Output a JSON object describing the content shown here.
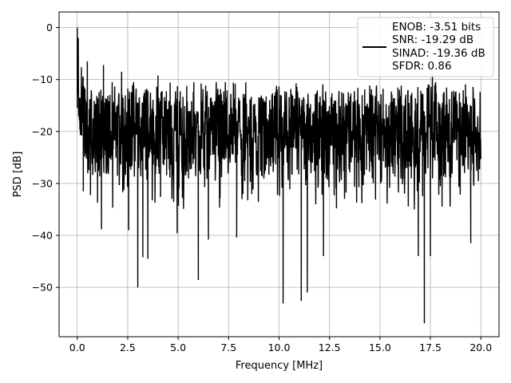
{
  "chart_data": {
    "type": "line",
    "title": "",
    "xlabel": "Frequency [MHz]",
    "ylabel": "PSD [dB]",
    "xlim": [
      -0.9,
      20.9
    ],
    "ylim": [
      -59.5,
      3.0
    ],
    "xticks": [
      0.0,
      2.5,
      5.0,
      7.5,
      10.0,
      12.5,
      15.0,
      17.5,
      20.0
    ],
    "xtick_labels": [
      "0.0",
      "2.5",
      "5.0",
      "7.5",
      "10.0",
      "12.5",
      "15.0",
      "17.5",
      "20.0"
    ],
    "yticks": [
      0,
      -10,
      -20,
      -30,
      -40,
      -50
    ],
    "ytick_labels": [
      "0",
      "−10",
      "−20",
      "−30",
      "−40",
      "−50"
    ],
    "grid": true,
    "legend_position": "top-right",
    "legend_lines": [
      "ENOB: -3.51 bits",
      "SNR: -19.29 dB",
      "SINAD: -19.36 dB",
      "SFDR: 0.86"
    ],
    "line_color": "#000000",
    "series_description": "dense noisy PSD; baseline around -20 dB fluctuating between roughly -10 and -35 dB",
    "peaks": [
      {
        "x": 0.0,
        "y": 0.0
      },
      {
        "x": 0.05,
        "y": -2.0
      },
      {
        "x": 0.5,
        "y": -6.5
      },
      {
        "x": 1.3,
        "y": -7.2
      },
      {
        "x": 2.2,
        "y": -8.5
      },
      {
        "x": 4.0,
        "y": -9.2
      },
      {
        "x": 17.6,
        "y": -9.0
      }
    ],
    "dips": [
      {
        "x": 0.3,
        "y": -31.5
      },
      {
        "x": 1.2,
        "y": -38.8
      },
      {
        "x": 2.55,
        "y": -39.0
      },
      {
        "x": 3.0,
        "y": -50.0
      },
      {
        "x": 3.25,
        "y": -44.2
      },
      {
        "x": 3.5,
        "y": -44.5
      },
      {
        "x": 4.95,
        "y": -39.6
      },
      {
        "x": 6.0,
        "y": -48.6
      },
      {
        "x": 6.5,
        "y": -40.8
      },
      {
        "x": 7.9,
        "y": -40.4
      },
      {
        "x": 10.2,
        "y": -53.1
      },
      {
        "x": 11.1,
        "y": -52.6
      },
      {
        "x": 11.4,
        "y": -51.0
      },
      {
        "x": 12.2,
        "y": -44.0
      },
      {
        "x": 16.9,
        "y": -44.0
      },
      {
        "x": 17.2,
        "y": -56.9
      },
      {
        "x": 17.5,
        "y": -44.0
      },
      {
        "x": 19.5,
        "y": -41.5
      }
    ]
  }
}
